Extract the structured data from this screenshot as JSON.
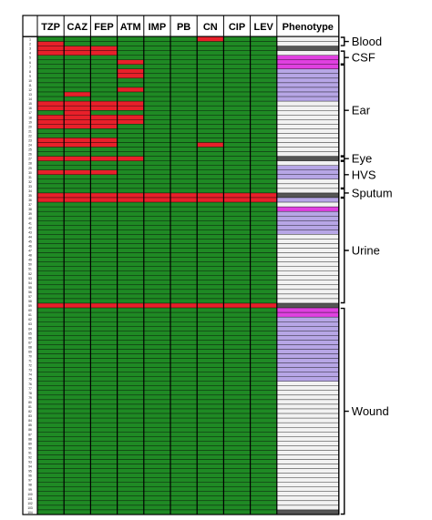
{
  "chart_data": {
    "type": "heatmap",
    "title": "",
    "xlabel": "",
    "ylabel": "",
    "columns": [
      "TZP",
      "CAZ",
      "FEP",
      "ATM",
      "IMP",
      "PB",
      "CN",
      "CIP",
      "LEV",
      "Phenotype"
    ],
    "row_ids": [
      "1",
      "2",
      "3",
      "4",
      "5",
      "6",
      "7",
      "8",
      "9",
      "10",
      "11",
      "12",
      "13",
      "14",
      "15",
      "16",
      "17",
      "18",
      "19",
      "20",
      "21",
      "22",
      "23",
      "24",
      "25",
      "26",
      "27",
      "28",
      "29",
      "30",
      "31",
      "32",
      "33",
      "34",
      "35",
      "36",
      "37",
      "38",
      "39",
      "40",
      "41",
      "42",
      "43",
      "44",
      "45",
      "46",
      "47",
      "48",
      "49",
      "50",
      "51",
      "52",
      "53",
      "54",
      "55",
      "56",
      "57",
      "58",
      "59",
      "60",
      "61",
      "62",
      "63",
      "64",
      "65",
      "66",
      "67",
      "68",
      "69",
      "70",
      "71",
      "72",
      "73",
      "74",
      "75",
      "76",
      "77",
      "78",
      "79",
      "80",
      "81",
      "82",
      "83",
      "84",
      "85",
      "86",
      "87",
      "88",
      "89",
      "90",
      "91",
      "92",
      "93",
      "94",
      "95",
      "96",
      "97",
      "98",
      "99",
      "100",
      "101",
      "102",
      "103",
      "104"
    ],
    "colors": {
      "R": "#e8202a",
      "S": "#1f8a24",
      "I": "#f5f542",
      "P1": "#e040e0",
      "P2": "#b7a6e6",
      "P3": "#f2f2f2",
      "P4": "#555555"
    },
    "matrix": [
      "SSSSSSRSS",
      "RSSSSSSSS",
      "RRRSSSSSS",
      "RRRSSSSSS",
      "SSSSSSSSS",
      "SSSRSSSSS",
      "SSSSSSSSS",
      "SSSRSSSSS",
      "SSSRSSSSS",
      "SSSSSSSSS",
      "SSSSSSSSS",
      "SSSRSSSSS",
      "SRSSSSSSS",
      "SSSSSSSSS",
      "RRRRSSSSS",
      "RRRRSSSSS",
      "SRSSSSSSS",
      "RRRRSSSSS",
      "RRRRSSSSS",
      "RRRSSSSSS",
      "SSSSSSSSS",
      "SSSSSSSSS",
      "RRRSSSSSS",
      "RRRSSSRSS",
      "SSSSSSSSS",
      "SSSSSSSSS",
      "RRRRSSSSS",
      "SSSSSSSSS",
      "SSSSSSSSS",
      "RRRSSSSSS",
      "SSSSSSSSS",
      "SSSSSSSSS",
      "SSSSSSSSS",
      "SSSSSSSSS",
      "RRRRRRRRR",
      "RRRRRRRRR",
      "SSSSSSSSS",
      "SSSSSSSSS",
      "SSSSSSSSS",
      "SSSSSSSSS",
      "SSSSSSSSS",
      "SSSSSSSSS",
      "SSSSSSSSS",
      "SSSSSSSSS",
      "SSSSSSSSS",
      "SSSSSSSSS",
      "SSSSSSSSS",
      "SSSSSSSSS",
      "SSSSSSSSS",
      "SSSSSSSSS",
      "SSSSSSSSS",
      "SSSSSSSSS",
      "SSSSSSSSS",
      "SSSSSSSSS",
      "SSSSSSSSS",
      "SSSSSSSSS",
      "SSSSSSSSS",
      "SSSSSSSSS",
      "RRRRRRRRR",
      "SSSSSSSSS",
      "SSSSSSSSS",
      "SSSSSSSSS",
      "SSSSSSSSS",
      "SSSSSSSSS",
      "SSSSSSSSS",
      "SSSSSSSSS",
      "SSSSSSSSS",
      "SSSSSSSSS",
      "SSSSSSSSS",
      "SSSSSSSSS",
      "SSSSSSSSS",
      "SSSSSSSSS",
      "SSSSSSSSS",
      "SSSSSSSSS",
      "SSSSSSSSS",
      "SSSSSSSSS",
      "SSSSSSSSS",
      "SSSSSSSSS",
      "SSSSSSSSS",
      "SSSSSSSSS",
      "SSSSSSSSS",
      "SSSSSSSSS",
      "SSSSSSSSS",
      "SSSSSSSSS",
      "SSSSSSSSS",
      "SSSSSSSSS",
      "SSSSSSSSS",
      "SSSSSSSSS",
      "SSSSSSSSS",
      "SSSSSSSSS",
      "SSSSSSSSS",
      "SSSSSSSSS",
      "SSSSSSSSS",
      "SSSSSSSSS",
      "SSSSSSSSS",
      "SSSSSSSSS",
      "SSSSSSSSS",
      "SSSSSSSSS",
      "SSSSSSSSS",
      "SSSSSSSSS",
      "SSSSSSSSS",
      "SSSSSSSSS",
      "SSSSSSSSS",
      "SSSSSSSSS"
    ],
    "phenotype": [
      "P3",
      "P3",
      "P4",
      "P3",
      "P1",
      "P1",
      "P1",
      "P2",
      "P2",
      "P2",
      "P2",
      "P2",
      "P2",
      "P2",
      "P3",
      "P3",
      "P3",
      "P3",
      "P3",
      "P3",
      "P3",
      "P3",
      "P3",
      "P3",
      "P3",
      "P3",
      "P4",
      "P3",
      "P2",
      "P2",
      "P2",
      "P3",
      "P3",
      "P3",
      "P4",
      "P2",
      "P3",
      "P1",
      "P2",
      "P2",
      "P2",
      "P2",
      "P2",
      "P3",
      "P3",
      "P3",
      "P3",
      "P3",
      "P3",
      "P3",
      "P3",
      "P3",
      "P3",
      "P3",
      "P3",
      "P3",
      "P3",
      "P3",
      "P4",
      "P1",
      "P1",
      "P2",
      "P2",
      "P2",
      "P2",
      "P2",
      "P2",
      "P2",
      "P2",
      "P2",
      "P2",
      "P2",
      "P2",
      "P2",
      "P2",
      "P3",
      "P3",
      "P3",
      "P3",
      "P3",
      "P3",
      "P3",
      "P3",
      "P3",
      "P3",
      "P3",
      "P3",
      "P3",
      "P3",
      "P3",
      "P3",
      "P3",
      "P3",
      "P3",
      "P3",
      "P3",
      "P3",
      "P3",
      "P3",
      "P3",
      "P3",
      "P3",
      "P3",
      "P4"
    ],
    "groups": [
      {
        "label": "Blood",
        "start": 1,
        "end": 2
      },
      {
        "label": "CSF",
        "start": 4,
        "end": 6
      },
      {
        "label": "Ear",
        "start": 7,
        "end": 26
      },
      {
        "label": "Eye",
        "start": 27,
        "end": 27
      },
      {
        "label": "HVS",
        "start": 28,
        "end": 33
      },
      {
        "label": "Sputum",
        "start": 34,
        "end": 35
      },
      {
        "label": "Urine",
        "start": 36,
        "end": 58
      },
      {
        "label": "Wound",
        "start": 60,
        "end": 104
      }
    ]
  }
}
